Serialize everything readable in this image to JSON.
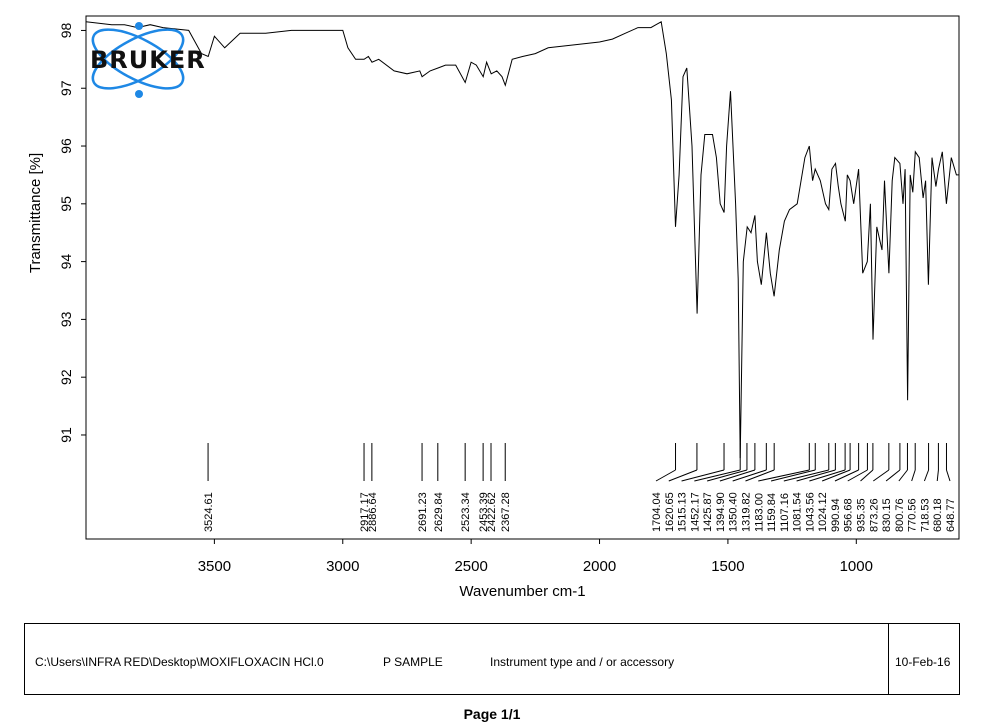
{
  "chart_data": {
    "type": "line",
    "xlabel": "Wavenumber cm-1",
    "ylabel": "Transmittance [%]",
    "xlim": [
      4000,
      600
    ],
    "ylim": [
      89.2,
      98.25
    ],
    "x_ticks": [
      3500,
      3000,
      2500,
      2000,
      1500,
      1000
    ],
    "y_ticks": [
      91,
      92,
      93,
      94,
      95,
      96,
      97,
      98
    ],
    "series": [
      {
        "x": [
          4000,
          3900,
          3850,
          3800,
          3750,
          3700,
          3600,
          3550,
          3524,
          3500,
          3460,
          3400,
          3300,
          3200,
          3100,
          3000,
          2980,
          2950,
          2917,
          2900,
          2886,
          2860,
          2800,
          2750,
          2700,
          2691,
          2660,
          2629,
          2600,
          2560,
          2523,
          2500,
          2480,
          2453,
          2440,
          2422,
          2400,
          2380,
          2367,
          2340,
          2300,
          2250,
          2200,
          2100,
          2000,
          1950,
          1900,
          1850,
          1800,
          1780,
          1760,
          1740,
          1720,
          1704,
          1690,
          1675,
          1660,
          1640,
          1620,
          1605,
          1590,
          1560,
          1545,
          1530,
          1515,
          1505,
          1490,
          1470,
          1460,
          1452,
          1440,
          1425,
          1410,
          1395,
          1385,
          1370,
          1350,
          1335,
          1320,
          1300,
          1280,
          1260,
          1230,
          1200,
          1183,
          1170,
          1160,
          1140,
          1120,
          1107,
          1095,
          1081,
          1070,
          1060,
          1043,
          1035,
          1024,
          1010,
          991,
          975,
          957,
          945,
          935,
          920,
          900,
          890,
          873,
          860,
          850,
          830,
          818,
          810,
          800,
          790,
          780,
          770,
          755,
          740,
          730,
          719,
          705,
          690,
          680,
          665,
          649,
          630,
          610,
          600
        ],
        "y": [
          98.15,
          98.1,
          98.1,
          98.05,
          98.1,
          98.05,
          98.0,
          97.6,
          97.55,
          97.9,
          97.7,
          97.95,
          97.95,
          98.0,
          98.0,
          98.0,
          97.7,
          97.5,
          97.5,
          97.55,
          97.45,
          97.5,
          97.3,
          97.25,
          97.3,
          97.2,
          97.3,
          97.35,
          97.4,
          97.4,
          97.1,
          97.45,
          97.4,
          97.2,
          97.45,
          97.25,
          97.3,
          97.2,
          97.05,
          97.5,
          97.55,
          97.6,
          97.7,
          97.75,
          97.8,
          97.85,
          97.95,
          98.05,
          98.05,
          98.1,
          98.15,
          97.6,
          96.8,
          94.6,
          95.5,
          97.2,
          97.35,
          96.0,
          93.1,
          95.5,
          96.2,
          96.2,
          95.8,
          95.0,
          94.85,
          96.0,
          96.95,
          95.0,
          93.7,
          90.6,
          94.0,
          94.6,
          94.5,
          94.8,
          94.0,
          93.6,
          94.5,
          93.8,
          93.4,
          94.2,
          94.7,
          94.9,
          95.0,
          95.8,
          96.0,
          95.4,
          95.6,
          95.4,
          95.0,
          94.9,
          95.6,
          95.7,
          95.3,
          95.0,
          94.7,
          95.5,
          95.4,
          95.0,
          95.6,
          93.8,
          94.0,
          95.0,
          92.65,
          94.6,
          94.2,
          95.4,
          93.8,
          95.4,
          95.8,
          95.7,
          95.0,
          95.6,
          91.6,
          95.5,
          95.2,
          95.9,
          95.8,
          95.1,
          95.4,
          93.6,
          95.8,
          95.3,
          95.6,
          95.9,
          95.0,
          95.8,
          95.5,
          95.5
        ]
      }
    ],
    "peak_labels": [
      "3524.61",
      "2917.17",
      "2886.64",
      "2691.23",
      "2629.84",
      "2523.34",
      "2453.39",
      "2422.62",
      "2367.28",
      "1704.04",
      "1620.65",
      "1515.13",
      "1452.17",
      "1425.87",
      "1394.90",
      "1350.40",
      "1319.82",
      "1183.00",
      "1159.84",
      "1107.16",
      "1081.54",
      "1043.56",
      "1024.12",
      "990.94",
      "956.68",
      "935.35",
      "873.26",
      "830.15",
      "800.76",
      "770.56",
      "718.53",
      "680.18",
      "648.77"
    ],
    "peaks": [
      3524.61,
      2917.17,
      2886.64,
      2691.23,
      2629.84,
      2523.34,
      2453.39,
      2422.62,
      2367.28,
      1704.04,
      1620.65,
      1515.13,
      1452.17,
      1425.87,
      1394.9,
      1350.4,
      1319.82,
      1183.0,
      1159.84,
      1107.16,
      1081.54,
      1043.56,
      1024.12,
      990.94,
      956.68,
      935.35,
      873.26,
      830.15,
      800.76,
      770.56,
      718.53,
      680.18,
      648.77
    ],
    "grid": false,
    "line_color": "#000000"
  },
  "logo": {
    "text": "BRUKER",
    "orbit_color": "#1e88e5"
  },
  "footer": {
    "file_path": "C:\\Users\\INFRA RED\\Desktop\\MOXIFLOXACIN HCl.0",
    "sample": "P SAMPLE",
    "instrument": "Instrument type and / or accessory",
    "date": "10-Feb-16"
  },
  "page_label": "Page 1/1"
}
